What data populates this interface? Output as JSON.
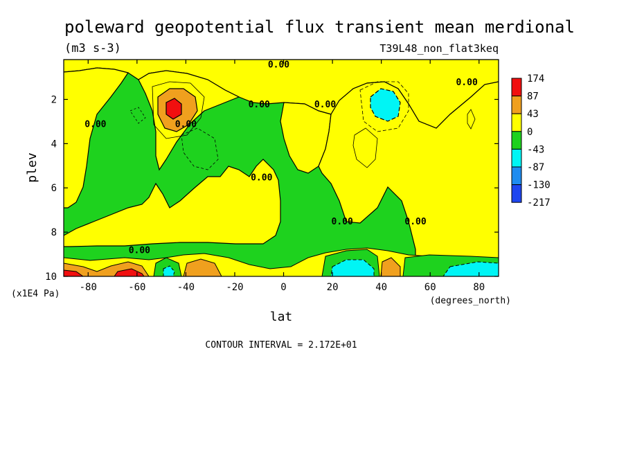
{
  "chart_data": {
    "type": "contour",
    "title": "poleward geopotential flux transient mean merdional",
    "units": "(m3 s-3)",
    "dataset": "T39L48_non_flat3keq",
    "xlabel": "lat",
    "x_units": "(degrees_north)",
    "ylabel": "plev",
    "y_units": "(x1E4 Pa)",
    "xlim": [
      -90,
      88
    ],
    "ylim": [
      10,
      0.2
    ],
    "x_ticks": [
      -80,
      -60,
      -40,
      -20,
      0,
      20,
      40,
      60,
      80
    ],
    "y_ticks": [
      2,
      4,
      6,
      8,
      10
    ],
    "contour_interval_text": "CONTOUR INTERVAL = 2.172E+01",
    "contour_labels": [
      {
        "text": "0.00",
        "lat": -2,
        "plev": 0.4
      },
      {
        "text": "0.00",
        "lat": -10,
        "plev": 2.2
      },
      {
        "text": "0.00",
        "lat": -77,
        "plev": 3.1
      },
      {
        "text": "0.00",
        "lat": -40,
        "plev": 3.1
      },
      {
        "text": "0.00",
        "lat": -9,
        "plev": 5.5
      },
      {
        "text": "0.00",
        "lat": 17,
        "plev": 2.2
      },
      {
        "text": "0.00",
        "lat": 75,
        "plev": 1.2
      },
      {
        "text": "0.00",
        "lat": 24,
        "plev": 7.5
      },
      {
        "text": "0.00",
        "lat": 54,
        "plev": 7.5
      },
      {
        "text": "0.00",
        "lat": -59,
        "plev": 8.8
      }
    ],
    "legend": {
      "placement": "right",
      "levels": [
        "174",
        "87",
        "43",
        "0",
        "-43",
        "-87",
        "-130",
        "-217"
      ],
      "colors": [
        "#f10f0f",
        "#f0a01e",
        "#ffff00",
        "#1ed21e",
        "#00f5f5",
        "#1e8cf0",
        "#1e46f0"
      ]
    },
    "regions": [
      {
        "name": "positive",
        "level": "0 to 43",
        "color": "#ffff00"
      },
      {
        "name": "negative",
        "level": "-43 to 0",
        "color": "#1ed21e"
      }
    ]
  }
}
